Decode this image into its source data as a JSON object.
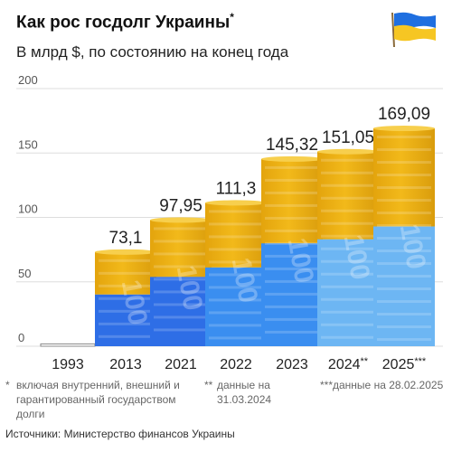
{
  "header": {
    "title": "Как рос госдолг Украины",
    "title_mark": "*",
    "subtitle": "В млрд $, по состоянию на конец года"
  },
  "flag_icon": "ukraine-flag-icon",
  "colors": {
    "flag_blue": "#1f6fe0",
    "flag_yellow": "#f6c623",
    "bar_yellow": "#f2b91a",
    "bar_blue_light": "#6db6f3",
    "bar_blue_mid": "#3a8ef0",
    "bar_blue_dark": "#2e6ee6",
    "grid": "#dddddd",
    "axis_text": "#555555"
  },
  "chart_data": {
    "type": "bar",
    "categories": [
      "1993",
      "2013",
      "2021",
      "2022",
      "2023",
      "2024",
      "2025"
    ],
    "category_marks": [
      "",
      "",
      "",
      "",
      "",
      "**",
      "***"
    ],
    "values": [
      0.4,
      73.1,
      97.95,
      111.3,
      145.32,
      151.05,
      169.09
    ],
    "value_labels": [
      "",
      "73,1",
      "97,95",
      "111,3",
      "145,32",
      "151,05",
      "169,09"
    ],
    "yticks": [
      0,
      50,
      100,
      150,
      200
    ],
    "ylim": [
      0,
      200
    ],
    "grid": true,
    "title": "Как рос госдолг Украины",
    "subtitle": "В млрд $, по состоянию на конец года"
  },
  "footnotes": [
    {
      "mark": "*",
      "text": "включая внутренний, внешний и гарантированный государством долги"
    },
    {
      "mark": "**",
      "text": "данные на 31.03.2024"
    },
    {
      "mark": "***",
      "text": "данные на 28.02.2025"
    }
  ],
  "source": "Источники: Министерство финансов Украины"
}
